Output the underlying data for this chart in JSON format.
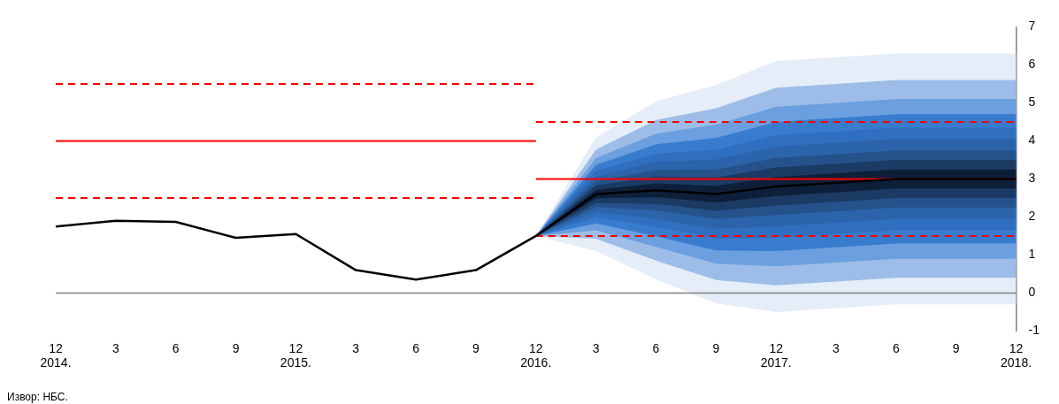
{
  "chart_data": {
    "type": "line",
    "categories": [
      "12\n2014.",
      "3",
      "6",
      "9",
      "12\n2015.",
      "3",
      "6",
      "9",
      "12\n2016.",
      "3",
      "6",
      "9",
      "12\n2017.",
      "3",
      "6",
      "9",
      "12\n2018."
    ],
    "series": [
      {
        "type": "line",
        "color": "#000000",
        "values": [
          1.75,
          1.9,
          1.87,
          1.45,
          1.55,
          0.6,
          0.35,
          0.6,
          1.5,
          2.6,
          2.7,
          2.6,
          2.8,
          2.9,
          3.0,
          3.0,
          3.0
        ]
      },
      {
        "type": "line",
        "color": "#ff0000",
        "line_style": "dashed",
        "values": [
          5.5,
          5.5,
          5.5,
          5.5,
          5.5,
          5.5,
          5.5,
          5.5,
          5.5,
          null,
          null,
          null,
          null,
          null,
          null,
          null,
          null
        ]
      },
      {
        "type": "line",
        "color": "#ff0000",
        "line_style": "solid",
        "values": [
          4,
          4,
          4,
          4,
          4,
          4,
          4,
          4,
          4,
          null,
          null,
          null,
          null,
          null,
          null,
          null,
          null
        ]
      },
      {
        "type": "line",
        "color": "#ff0000",
        "line_style": "dashed",
        "values": [
          2.5,
          2.5,
          2.5,
          2.5,
          2.5,
          2.5,
          2.5,
          2.5,
          2.5,
          null,
          null,
          null,
          null,
          null,
          null,
          null,
          null
        ]
      },
      {
        "type": "line",
        "color": "#ff0000",
        "line_style": "dashed",
        "values": [
          null,
          null,
          null,
          null,
          null,
          null,
          null,
          null,
          4.5,
          4.5,
          4.5,
          4.5,
          4.5,
          4.5,
          4.5,
          4.5,
          4.5
        ]
      },
      {
        "type": "line",
        "color": "#ff0000",
        "line_style": "solid",
        "values": [
          null,
          null,
          null,
          null,
          null,
          null,
          null,
          null,
          3,
          3,
          3,
          3,
          3,
          3,
          3,
          3,
          3
        ]
      },
      {
        "type": "line",
        "color": "#ff0000",
        "line_style": "dashed",
        "values": [
          null,
          null,
          null,
          null,
          null,
          null,
          null,
          null,
          1.5,
          1.5,
          1.5,
          1.5,
          1.5,
          1.5,
          1.5,
          1.5,
          1.5
        ]
      },
      {
        "type": "line",
        "color": "#0e1f3a",
        "values": [
          null,
          null,
          null,
          null,
          null,
          null,
          null,
          null,
          null,
          null,
          null,
          null,
          null,
          null,
          null,
          null,
          null
        ],
        "lower": [
          null,
          null,
          null,
          null,
          null,
          null,
          null,
          null,
          1.5,
          2.49,
          2.52,
          2.38,
          2.55,
          2.65,
          2.75,
          2.75,
          2.75
        ],
        "upper": [
          null,
          null,
          null,
          null,
          null,
          null,
          null,
          null,
          1.5,
          2.71,
          2.88,
          2.82,
          3.05,
          3.15,
          3.25,
          3.25,
          3.25
        ]
      },
      {
        "type": "line",
        "color": "#1b3a64",
        "values": [
          null,
          null,
          null,
          null,
          null,
          null,
          null,
          null,
          null,
          null,
          null,
          null,
          null,
          null,
          null,
          null,
          null
        ],
        "lower": [
          null,
          null,
          null,
          null,
          null,
          null,
          null,
          null,
          1.5,
          2.37,
          2.34,
          2.16,
          2.3,
          2.4,
          2.5,
          2.5,
          2.5
        ],
        "upper": [
          null,
          null,
          null,
          null,
          null,
          null,
          null,
          null,
          1.5,
          2.83,
          3.06,
          3.04,
          3.3,
          3.4,
          3.5,
          3.5,
          3.5
        ]
      },
      {
        "type": "line",
        "color": "#25528a",
        "values": [
          null,
          null,
          null,
          null,
          null,
          null,
          null,
          null,
          null,
          null,
          null,
          null,
          null,
          null,
          null,
          null,
          null
        ],
        "lower": [
          null,
          null,
          null,
          null,
          null,
          null,
          null,
          null,
          1.5,
          2.26,
          2.17,
          1.95,
          2.05,
          2.15,
          2.25,
          2.25,
          2.25
        ],
        "upper": [
          null,
          null,
          null,
          null,
          null,
          null,
          null,
          null,
          1.5,
          2.94,
          3.23,
          3.25,
          3.55,
          3.65,
          3.75,
          3.75,
          3.75
        ]
      },
      {
        "type": "line",
        "color": "#2b64aa",
        "values": [
          null,
          null,
          null,
          null,
          null,
          null,
          null,
          null,
          null,
          null,
          null,
          null,
          null,
          null,
          null,
          null,
          null
        ],
        "lower": [
          null,
          null,
          null,
          null,
          null,
          null,
          null,
          null,
          1.5,
          2.13,
          1.95,
          1.69,
          1.75,
          1.85,
          1.95,
          1.95,
          1.95
        ],
        "upper": [
          null,
          null,
          null,
          null,
          null,
          null,
          null,
          null,
          1.5,
          3.07,
          3.45,
          3.51,
          3.85,
          3.95,
          4.05,
          4.05,
          4.05
        ]
      },
      {
        "type": "line",
        "color": "#306fbf",
        "values": [
          null,
          null,
          null,
          null,
          null,
          null,
          null,
          null,
          null,
          null,
          null,
          null,
          null,
          null,
          null,
          null,
          null
        ],
        "lower": [
          null,
          null,
          null,
          null,
          null,
          null,
          null,
          null,
          1.5,
          1.99,
          1.74,
          1.43,
          1.45,
          1.55,
          1.65,
          1.65,
          1.65
        ],
        "upper": [
          null,
          null,
          null,
          null,
          null,
          null,
          null,
          null,
          1.5,
          3.21,
          3.66,
          3.77,
          4.15,
          4.25,
          4.35,
          4.35,
          4.35
        ]
      },
      {
        "type": "line",
        "color": "#387cce",
        "values": [
          null,
          null,
          null,
          null,
          null,
          null,
          null,
          null,
          null,
          null,
          null,
          null,
          null,
          null,
          null,
          null,
          null
        ],
        "lower": [
          null,
          null,
          null,
          null,
          null,
          null,
          null,
          null,
          1.5,
          1.83,
          1.49,
          1.12,
          1.1,
          1.2,
          1.3,
          1.3,
          1.3
        ],
        "upper": [
          null,
          null,
          null,
          null,
          null,
          null,
          null,
          null,
          1.5,
          3.37,
          3.91,
          4.08,
          4.5,
          4.6,
          4.7,
          4.7,
          4.7
        ]
      },
      {
        "type": "line",
        "color": "#6b9fdf",
        "values": [
          null,
          null,
          null,
          null,
          null,
          null,
          null,
          null,
          null,
          null,
          null,
          null,
          null,
          null,
          null,
          null,
          null
        ],
        "lower": [
          null,
          null,
          null,
          null,
          null,
          null,
          null,
          null,
          1.5,
          1.65,
          1.21,
          0.77,
          0.7,
          0.8,
          0.9,
          0.9,
          0.9
        ],
        "upper": [
          null,
          null,
          null,
          null,
          null,
          null,
          null,
          null,
          1.5,
          3.55,
          4.19,
          4.43,
          4.9,
          5.0,
          5.1,
          5.1,
          5.1
        ]
      },
      {
        "type": "line",
        "color": "#9dbde8",
        "values": [
          null,
          null,
          null,
          null,
          null,
          null,
          null,
          null,
          null,
          null,
          null,
          null,
          null,
          null,
          null,
          null,
          null
        ],
        "lower": [
          null,
          null,
          null,
          null,
          null,
          null,
          null,
          null,
          1.5,
          1.43,
          0.85,
          0.34,
          0.2,
          0.3,
          0.4,
          0.4,
          0.4
        ],
        "upper": [
          null,
          null,
          null,
          null,
          null,
          null,
          null,
          null,
          1.5,
          3.77,
          4.55,
          4.86,
          5.4,
          5.5,
          5.6,
          5.6,
          5.6
        ]
      },
      {
        "type": "line",
        "color": "#e4edf8",
        "values": [
          null,
          null,
          null,
          null,
          null,
          null,
          null,
          null,
          null,
          null,
          null,
          null,
          null,
          null,
          null,
          null,
          null
        ],
        "lower": [
          null,
          null,
          null,
          null,
          null,
          null,
          null,
          null,
          1.5,
          1.11,
          0.36,
          -0.27,
          -0.5,
          -0.4,
          -0.3,
          -0.3,
          -0.3
        ],
        "upper": [
          null,
          null,
          null,
          null,
          null,
          null,
          null,
          null,
          1.5,
          4.09,
          5.04,
          5.47,
          6.1,
          6.2,
          6.3,
          6.3,
          6.3
        ]
      }
    ],
    "ylim": [
      -1,
      7
    ],
    "yticks": [
      -1,
      0,
      1,
      2,
      3,
      4,
      5,
      6,
      7
    ],
    "ref_lines": [
      {
        "axis": "y",
        "value": 0,
        "color": "#808080"
      }
    ],
    "grid": false,
    "legend": false,
    "marker": "none",
    "annotations": [
      "Извор: НБС."
    ]
  }
}
